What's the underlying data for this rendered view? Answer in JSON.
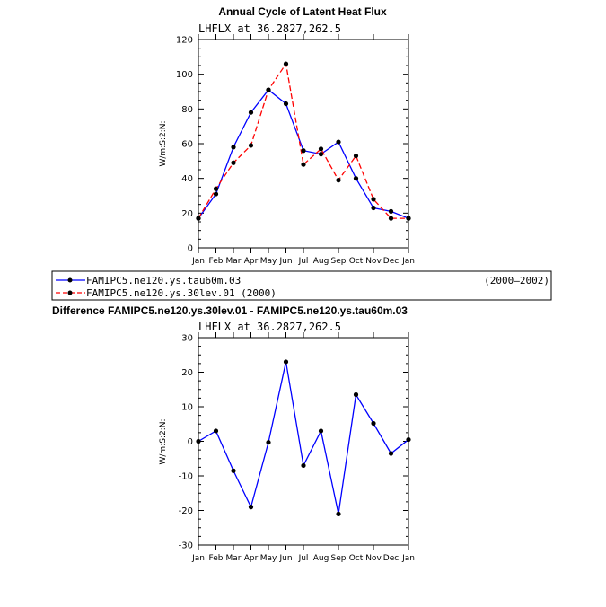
{
  "chart_data": [
    {
      "type": "line",
      "title": "Annual Cycle of Latent Heat Flux",
      "subtitle": "LHFLX at 36.2827,262.5",
      "ylabel": "W/m:S:2:N:",
      "xlabel": "",
      "categories": [
        "Jan",
        "Feb",
        "Mar",
        "Apr",
        "May",
        "Jun",
        "Jul",
        "Aug",
        "Sep",
        "Oct",
        "Nov",
        "Dec",
        "Jan"
      ],
      "ylim": [
        0,
        120
      ],
      "yticks": [
        0,
        20,
        40,
        60,
        80,
        100,
        120
      ],
      "series": [
        {
          "name": "FAMIPC5.ne120.ys.tau60m.03",
          "years": "(2000–2002)",
          "color": "#0000ff",
          "style": "solid",
          "values": [
            17,
            31,
            58,
            78,
            91,
            83,
            56,
            54,
            61,
            40,
            23,
            21,
            17
          ]
        },
        {
          "name": "FAMIPC5.ne120.ys.30lev.01",
          "years": "(2000)",
          "color": "#ff0000",
          "style": "dashed",
          "values": [
            17,
            34,
            49,
            59,
            91,
            106,
            48,
            57,
            39,
            53,
            28,
            17,
            17
          ]
        }
      ]
    },
    {
      "type": "line",
      "title": "Difference FAMIPC5.ne120.ys.30lev.01 - FAMIPC5.ne120.ys.tau60m.03",
      "subtitle": "LHFLX at 36.2827,262.5",
      "ylabel": "W/m:S:2:N:",
      "xlabel": "",
      "categories": [
        "Jan",
        "Feb",
        "Mar",
        "Apr",
        "May",
        "Jun",
        "Jul",
        "Aug",
        "Sep",
        "Oct",
        "Nov",
        "Dec",
        "Jan"
      ],
      "ylim": [
        -30,
        30
      ],
      "yticks": [
        -30,
        -20,
        -10,
        0,
        10,
        20,
        30
      ],
      "series": [
        {
          "name": "difference",
          "color": "#0000ff",
          "style": "solid",
          "values": [
            0,
            3,
            -8.5,
            -19,
            -0.3,
            23,
            -7,
            3,
            -21,
            13.5,
            5.2,
            -3.5,
            0.5
          ]
        }
      ]
    }
  ],
  "legend": {
    "entries": [
      {
        "label": "FAMIPC5.ne120.ys.tau60m.03",
        "years": "(2000–2002)",
        "color": "#0000ff",
        "style": "solid"
      },
      {
        "label": "FAMIPC5.ne120.ys.30lev.01 (2000)",
        "years": "",
        "color": "#ff0000",
        "style": "dashed"
      }
    ]
  }
}
